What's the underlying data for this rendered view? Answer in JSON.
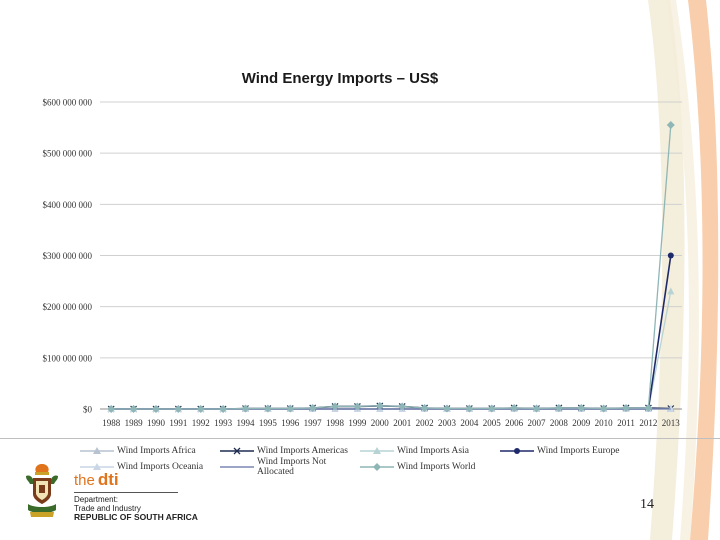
{
  "colors": {
    "deco_orange": "#f7c9a3",
    "deco_cream": "#f3ecd8",
    "africa": "#b7c3d0",
    "americas": "#1f2d52",
    "asia": "#b7d3d3",
    "europe": "#1f2a6b",
    "oceania": "#c9d6e6",
    "not_allocated": "#7b87b3",
    "world": "#8fb6b6",
    "brand_orange": "#e0741c"
  },
  "chart_data": {
    "type": "line",
    "title": "Wind Energy Imports – US$",
    "xlabel": "",
    "ylabel": "",
    "x": [
      "1988",
      "1989",
      "1990",
      "1991",
      "1992",
      "1993",
      "1994",
      "1995",
      "1996",
      "1997",
      "1998",
      "1999",
      "2000",
      "2001",
      "2002",
      "2003",
      "2004",
      "2005",
      "2006",
      "2007",
      "2008",
      "2009",
      "2010",
      "2011",
      "2012",
      "2013"
    ],
    "ylim": [
      0,
      600000000
    ],
    "y_ticks": [
      {
        "value": 0,
        "label": "$0"
      },
      {
        "value": 100000000,
        "label": "$100 000 000"
      },
      {
        "value": 200000000,
        "label": "$200 000 000"
      },
      {
        "value": 300000000,
        "label": "$300 000 000"
      },
      {
        "value": 400000000,
        "label": "$400 000 000"
      },
      {
        "value": 500000000,
        "label": "$500 000 000"
      },
      {
        "value": 600000000,
        "label": "$600 000 000"
      }
    ],
    "grid": true,
    "legend_position": "bottom",
    "series": [
      {
        "name": "Wind Imports Africa",
        "color_key": "africa",
        "marker": "triangle",
        "values": [
          0,
          0,
          0,
          0,
          0,
          0,
          0,
          0,
          0,
          0,
          0,
          0,
          0,
          0,
          0,
          0,
          0,
          0,
          0,
          0,
          0,
          0,
          0,
          0,
          0,
          0
        ]
      },
      {
        "name": "Wind Imports Americas",
        "color_key": "americas",
        "marker": "x",
        "values": [
          0,
          0,
          0,
          0,
          0,
          0,
          1000000,
          1000000,
          1000000,
          2000000,
          5000000,
          5000000,
          6000000,
          5000000,
          2000000,
          1000000,
          1000000,
          1000000,
          2000000,
          1000000,
          2000000,
          2000000,
          1000000,
          2000000,
          2000000,
          1000000
        ]
      },
      {
        "name": "Wind Imports Asia",
        "color_key": "asia",
        "marker": "triangle",
        "values": [
          0,
          0,
          0,
          0,
          0,
          0,
          0,
          0,
          0,
          0,
          0,
          0,
          0,
          0,
          0,
          0,
          0,
          0,
          0,
          0,
          0,
          0,
          0,
          0,
          0,
          230000000
        ]
      },
      {
        "name": "Wind Imports Europe",
        "color_key": "europe",
        "marker": "circle",
        "values": [
          0,
          0,
          0,
          0,
          0,
          0,
          0,
          0,
          0,
          0,
          0,
          0,
          0,
          0,
          0,
          0,
          0,
          0,
          0,
          0,
          0,
          0,
          0,
          0,
          0,
          300000000
        ]
      },
      {
        "name": "Wind Imports Oceania",
        "color_key": "oceania",
        "marker": "triangle",
        "values": [
          0,
          0,
          0,
          0,
          0,
          0,
          0,
          0,
          0,
          0,
          0,
          0,
          0,
          0,
          0,
          0,
          0,
          0,
          0,
          0,
          0,
          0,
          0,
          0,
          0,
          0
        ]
      },
      {
        "name": "Wind Imports Not Allocated",
        "color_key": "not_allocated",
        "marker": "none",
        "values": [
          0,
          0,
          0,
          0,
          0,
          0,
          0,
          0,
          0,
          0,
          0,
          0,
          0,
          0,
          0,
          0,
          0,
          0,
          0,
          0,
          0,
          0,
          0,
          0,
          0,
          0
        ]
      },
      {
        "name": "Wind Imports World",
        "color_key": "world",
        "marker": "diamond",
        "values": [
          0,
          0,
          0,
          0,
          0,
          0,
          1000000,
          1000000,
          1000000,
          2000000,
          5000000,
          5000000,
          6000000,
          5000000,
          2000000,
          1000000,
          1000000,
          1000000,
          2000000,
          1000000,
          2000000,
          2000000,
          1000000,
          2000000,
          2000000,
          555000000
        ]
      }
    ]
  },
  "footer": {
    "brand_the": "the",
    "brand_dti": "dti",
    "department": "Department:",
    "trade": "Trade and Industry",
    "republic": "REPUBLIC OF SOUTH AFRICA",
    "page_number": "14"
  }
}
